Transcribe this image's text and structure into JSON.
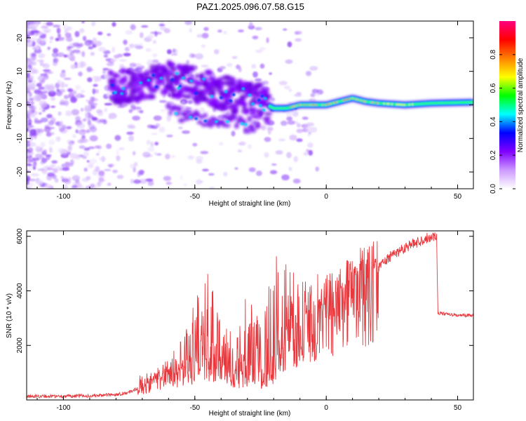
{
  "title": "PAZ1.2025.096.07.58.G15",
  "chart_data": [
    {
      "type": "heatmap",
      "xlabel": "Height of straight line (km)",
      "ylabel": "Frequency (Hz)",
      "xlim": [
        -114,
        56
      ],
      "ylim": [
        -25,
        25
      ],
      "xticks": [
        "-100",
        "-50",
        "0",
        "50"
      ],
      "yticks": [
        "-20",
        "-10",
        "0",
        "10",
        "20"
      ],
      "colorbar": {
        "label": "Normalized spectral amplitude",
        "range": [
          0,
          1
        ],
        "ticks": [
          "0.0",
          "0.2",
          "0.4",
          "0.6",
          "0.8"
        ],
        "colors": [
          "#ffffff",
          "#cc99ff",
          "#8000ff",
          "#0000ff",
          "#00ffff",
          "#00ff00",
          "#ffff00",
          "#ff8000",
          "#ff0000",
          "#ff0080"
        ]
      },
      "ridge": [
        {
          "x": -82,
          "y": 5
        },
        {
          "x": -70,
          "y": 6
        },
        {
          "x": -60,
          "y": 8
        },
        {
          "x": -50,
          "y": 6
        },
        {
          "x": -40,
          "y": 4
        },
        {
          "x": -30,
          "y": 2
        },
        {
          "x": -25,
          "y": 1
        },
        {
          "x": -20,
          "y": -1
        },
        {
          "x": -15,
          "y": -1
        },
        {
          "x": -10,
          "y": 0
        },
        {
          "x": 0,
          "y": 0
        },
        {
          "x": 5,
          "y": 1
        },
        {
          "x": 10,
          "y": 2
        },
        {
          "x": 15,
          "y": 1
        },
        {
          "x": 20,
          "y": 0.5
        },
        {
          "x": 30,
          "y": 0
        },
        {
          "x": 40,
          "y": 0.5
        },
        {
          "x": 56,
          "y": 0.8
        }
      ],
      "secondary_ridge": [
        {
          "x": -60,
          "y": -2
        },
        {
          "x": -50,
          "y": -4
        },
        {
          "x": -45,
          "y": -5
        },
        {
          "x": -35,
          "y": -5
        },
        {
          "x": -30,
          "y": -6
        },
        {
          "x": -25,
          "y": -7
        }
      ]
    },
    {
      "type": "line",
      "xlabel": "Height of straight line (km)",
      "ylabel": "SNR (10 * v/v)",
      "xlim": [
        -114,
        56
      ],
      "ylim": [
        0,
        6200
      ],
      "xticks": [
        "-100",
        "-50",
        "0",
        "50"
      ],
      "yticks": [
        "2000",
        "4000",
        "6000"
      ],
      "color": "#e8383d",
      "series": [
        {
          "x": [
            -114,
            -100,
            -90,
            -80,
            -75,
            -70,
            -65,
            -60,
            -55,
            -50,
            -47,
            -45,
            -40,
            -35,
            -30,
            -25,
            -20,
            -18,
            -15,
            -12,
            -10,
            -5,
            0,
            5,
            8,
            10,
            15,
            20,
            25,
            30,
            35,
            40,
            42,
            42.5,
            45,
            50,
            56
          ],
          "y": [
            130,
            140,
            150,
            200,
            280,
            500,
            800,
            1000,
            1200,
            1400,
            1800,
            1600,
            1400,
            1100,
            1000,
            1000,
            1100,
            2100,
            2600,
            2800,
            3000,
            3400,
            3700,
            4000,
            4200,
            4500,
            4700,
            4900,
            5300,
            5600,
            5800,
            6000,
            6000,
            3200,
            3150,
            3100,
            3100
          ],
          "envelope": [
            {
              "x": -70,
              "top": 900
            },
            {
              "x": -60,
              "top": 1600
            },
            {
              "x": -55,
              "top": 2200
            },
            {
              "x": -50,
              "top": 3600
            },
            {
              "x": -45,
              "top": 4900
            },
            {
              "x": -40,
              "top": 2800
            },
            {
              "x": -35,
              "top": 2400
            },
            {
              "x": -30,
              "top": 4000
            },
            {
              "x": -25,
              "top": 2900
            },
            {
              "x": -20,
              "top": 5500
            },
            {
              "x": -15,
              "top": 5100
            },
            {
              "x": -10,
              "top": 5000
            },
            {
              "x": -5,
              "top": 4800
            },
            {
              "x": 0,
              "top": 4600
            },
            {
              "x": 5,
              "top": 4900
            },
            {
              "x": 10,
              "top": 5400
            },
            {
              "x": 15,
              "top": 5700
            },
            {
              "x": 20,
              "top": 5900
            }
          ]
        }
      ]
    }
  ]
}
